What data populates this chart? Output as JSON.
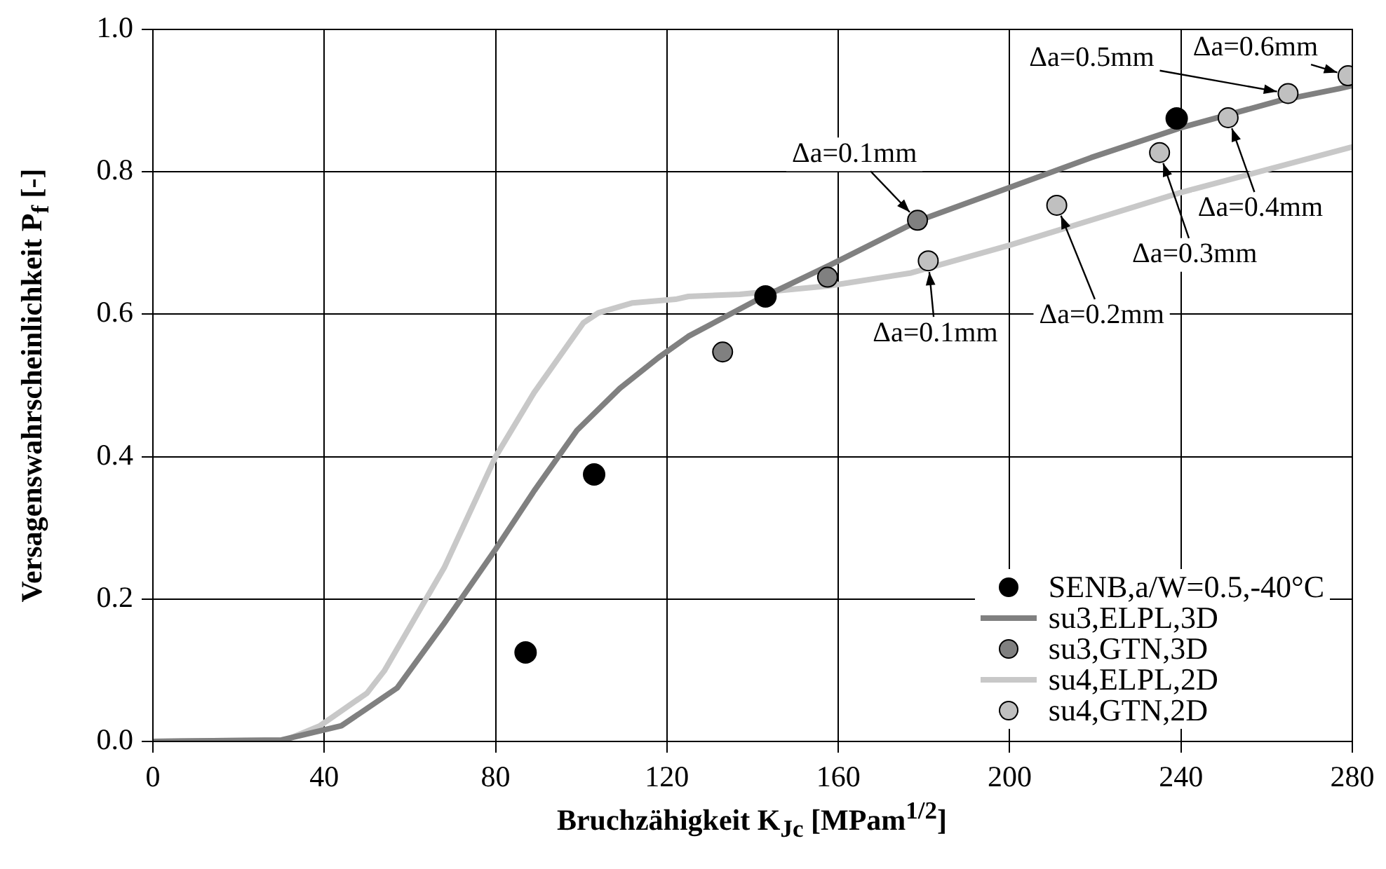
{
  "chart_data": {
    "type": "scatter",
    "xlabel": "Bruchzähigkeit K$_{Jc}$ [MPam$^{1/2}$]",
    "ylabel": "Versagenswahrscheinlichkeit P$_{f}$ [-]",
    "xlim": [
      0,
      280
    ],
    "xticks": [
      0,
      40,
      80,
      120,
      160,
      200,
      240,
      280
    ],
    "ylim": [
      0,
      1
    ],
    "yticks": [
      {
        "value": 0,
        "label": "0.0"
      },
      {
        "value": 0.2,
        "label": "0.2"
      },
      {
        "value": 0.4,
        "label": "0.4"
      },
      {
        "value": 0.6,
        "label": "0.6"
      },
      {
        "value": 0.8,
        "label": "0.8"
      },
      {
        "value": 1,
        "label": "1.0"
      }
    ],
    "grid": true,
    "legend": "bottom right",
    "series": [
      {
        "name": "SENB,a/W=0.5,-40°C",
        "marker": "circle",
        "color": "#000000",
        "x": [
          87,
          103,
          143,
          239
        ],
        "values": [
          0.125,
          0.375,
          0.625,
          0.875
        ]
      },
      {
        "name": "su3,ELPL,3D",
        "type": "line",
        "marker": "none",
        "color": "#808080",
        "x": [
          0,
          30,
          44,
          57,
          68,
          80,
          89,
          99,
          109,
          118,
          125,
          141,
          158,
          179,
          200,
          219,
          240,
          263,
          277,
          280
        ],
        "values": [
          0,
          0.002,
          0.022,
          0.075,
          0.166,
          0.27,
          0.352,
          0.437,
          0.496,
          0.539,
          0.569,
          0.62,
          0.669,
          0.732,
          0.778,
          0.82,
          0.862,
          0.9,
          0.917,
          0.921
        ]
      },
      {
        "name": "su3,GTN,3D",
        "marker": "circle",
        "color": "#808080",
        "x": [
          133,
          157.5,
          178.5
        ],
        "values": [
          0.547,
          0.652,
          0.732
        ]
      },
      {
        "name": "su4,ELPL,2D",
        "type": "line",
        "marker": "none",
        "color": "#c8c8c8",
        "x": [
          0,
          31,
          39,
          50,
          54,
          68,
          80,
          89,
          100.5,
          104,
          112,
          122,
          125,
          137,
          158,
          177,
          200,
          240,
          280
        ],
        "values": [
          0,
          0.002,
          0.022,
          0.068,
          0.099,
          0.244,
          0.4,
          0.49,
          0.588,
          0.602,
          0.616,
          0.621,
          0.625,
          0.628,
          0.64,
          0.658,
          0.697,
          0.771,
          0.835
        ]
      },
      {
        "name": "su4,GTN,2D",
        "marker": "circle",
        "color": "#c0c0c0",
        "x": [
          181,
          211,
          235,
          251,
          265,
          279
        ],
        "values": [
          0.675,
          0.753,
          0.827,
          0.876,
          0.91,
          0.935
        ]
      }
    ],
    "annotations": [
      {
        "text": "Δa=0.1mm",
        "x": 178.5,
        "y": 0.732
      },
      {
        "text": "Δa=0.1mm",
        "x": 181,
        "y": 0.675
      },
      {
        "text": "Δa=0.2mm",
        "x": 211,
        "y": 0.753
      },
      {
        "text": "Δa=0.3mm",
        "x": 235,
        "y": 0.827
      },
      {
        "text": "Δa=0.4mm",
        "x": 251,
        "y": 0.876
      },
      {
        "text": "Δa=0.5mm",
        "x": 265,
        "y": 0.91
      },
      {
        "text": "Δa=0.6mm",
        "x": 279,
        "y": 0.935
      }
    ]
  }
}
